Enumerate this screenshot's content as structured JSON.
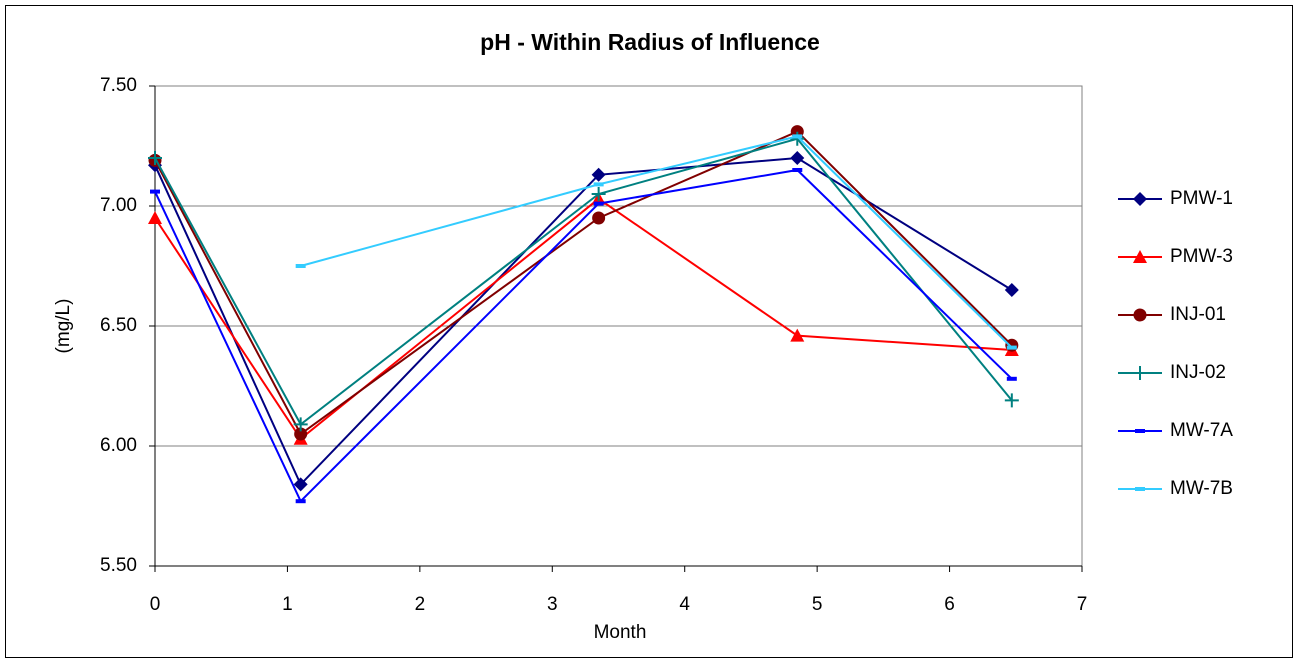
{
  "chart_data": {
    "type": "line",
    "title": "pH - Within Radius of Influence",
    "x_label": "Month",
    "y_label": "(mg/L)",
    "x": [
      0,
      1.1,
      3.35,
      4.85,
      6.47
    ],
    "series": [
      {
        "name": "PMW-1",
        "color": "#000080",
        "marker": "diamond",
        "values": [
          7.17,
          5.84,
          7.13,
          7.2,
          6.65
        ]
      },
      {
        "name": "PMW-3",
        "color": "#ff0000",
        "marker": "triangle",
        "values": [
          6.95,
          6.03,
          7.03,
          6.46,
          6.4
        ]
      },
      {
        "name": "INJ-01",
        "color": "#800000",
        "marker": "circle",
        "values": [
          7.19,
          6.05,
          6.95,
          7.31,
          6.42
        ]
      },
      {
        "name": "INJ-02",
        "color": "#008080",
        "marker": "plus",
        "values": [
          7.2,
          6.09,
          7.05,
          7.28,
          6.19
        ]
      },
      {
        "name": "MW-7A",
        "color": "#0000ff",
        "marker": "dash",
        "values": [
          7.06,
          5.77,
          7.01,
          7.15,
          6.28
        ]
      },
      {
        "name": "MW-7B",
        "color": "#33ccff",
        "marker": "dash",
        "values": [
          null,
          6.75,
          7.09,
          7.29,
          6.41
        ]
      }
    ],
    "xlim": [
      0,
      7
    ],
    "xticks": [
      0,
      1,
      2,
      3,
      4,
      5,
      6,
      7
    ],
    "ylim": [
      5.5,
      7.5
    ],
    "yticks": [
      {
        "value": 5.5,
        "label": "5.50"
      },
      {
        "value": 6,
        "label": "6.00"
      },
      {
        "value": 6.5,
        "label": "6.50"
      },
      {
        "value": 7,
        "label": "7.00"
      },
      {
        "value": 7.5,
        "label": "7.50"
      }
    ],
    "grid": true,
    "legend": "right"
  }
}
